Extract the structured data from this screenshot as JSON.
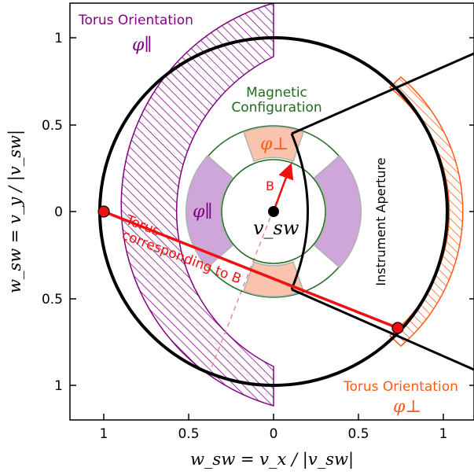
{
  "axes": {
    "xlabel": "w_sw = v_x / |v_sw|",
    "ylabel": "w_sw = v_y / |v_sw|",
    "xticks": [
      "1",
      "0.5",
      "0",
      "0.5",
      "1"
    ],
    "yticks": [
      "1",
      "0.5",
      "0",
      "0.5",
      "1"
    ]
  },
  "annotations": {
    "torus_orientation_parallel": "Torus Orientation",
    "phi_parallel_top": "φ∥",
    "magnetic_configuration_line1": "Magnetic",
    "magnetic_configuration_line2": "Configuration",
    "phi_perp_inner": "φ⊥",
    "b_vector_label": "B",
    "phi_parallel_inner": "φ∥",
    "v_sw_label": "v_sw",
    "torus_line1": "Torus",
    "torus_line2": "corresponding to B",
    "instrument_aperture": "Instrument Aperture",
    "torus_orientation_perp": "Torus Orientation",
    "phi_perp_bottom": "φ⊥"
  },
  "colors": {
    "purple": "#800080",
    "purple_fill": "#cfa6da",
    "orange": "#ff5a14",
    "orange_fill": "#f9c3ad",
    "red": "#ee1111",
    "green": "#1f6b1f",
    "black": "#000000"
  }
}
